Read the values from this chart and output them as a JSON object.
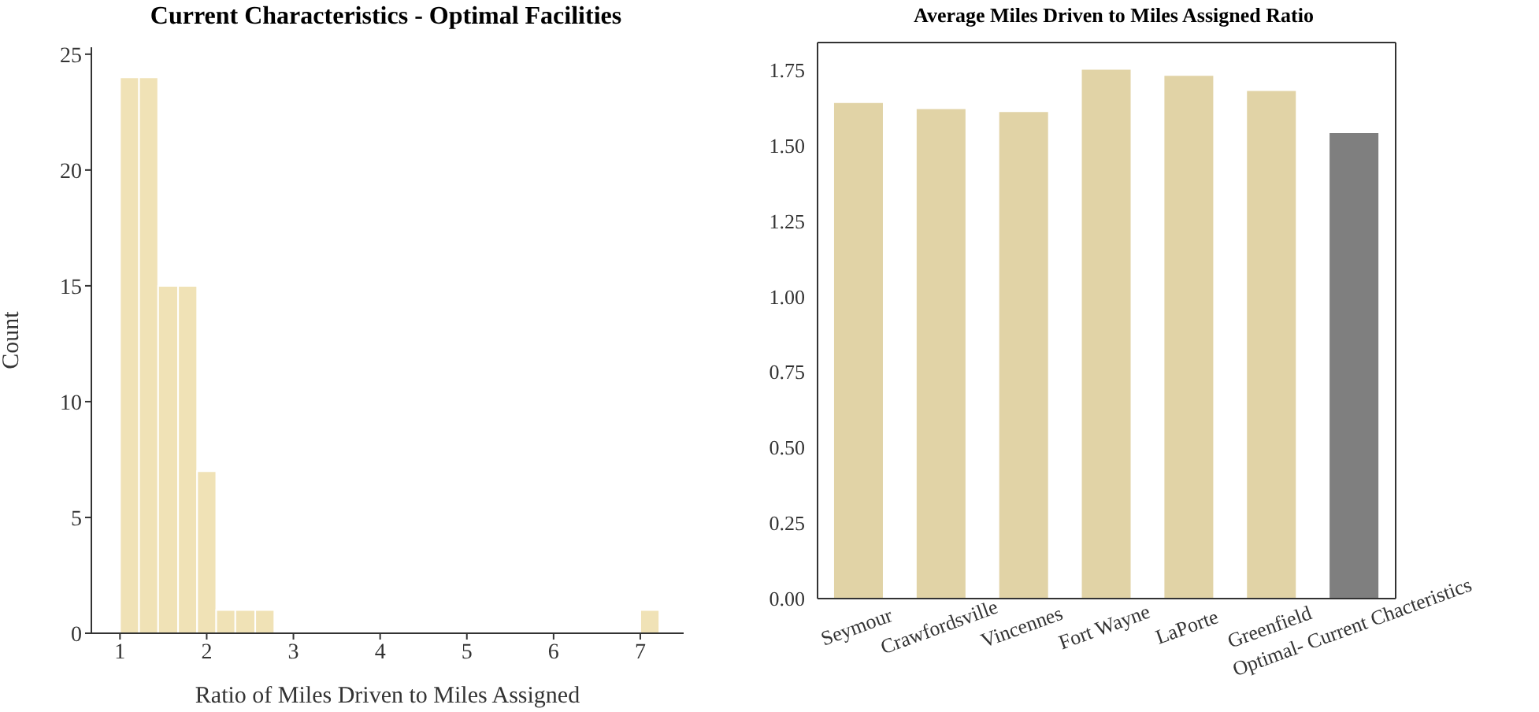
{
  "chart_data": [
    {
      "type": "histogram",
      "title": "Current Characteristics - Optimal Facilities",
      "xlabel": "Ratio of Miles Driven to Miles Assigned",
      "ylabel": "Count",
      "color": "#f0e2b6",
      "bins": [
        1,
        1.22,
        1.44,
        1.67,
        1.89,
        2.11,
        2.33,
        2.56,
        2.78,
        7,
        7.22
      ],
      "values": [
        24,
        24,
        15,
        15,
        7,
        1,
        1,
        1,
        0,
        1
      ],
      "xlim": [
        0.67,
        7.5
      ],
      "ylim": [
        0,
        25.3
      ],
      "xticks": [
        1,
        2,
        3,
        4,
        5,
        6,
        7
      ],
      "yticks": [
        0,
        5,
        10,
        15,
        20,
        25
      ]
    },
    {
      "type": "bar",
      "title": "Average Miles Driven to Miles Assigned Ratio",
      "categories": [
        "Seymour",
        "Crawfordsville",
        "Vincennes",
        "Fort Wayne",
        "LaPorte",
        "Greenfield",
        "Optimal- Current Chacteristics"
      ],
      "values": [
        1.64,
        1.62,
        1.61,
        1.75,
        1.73,
        1.68,
        1.54
      ],
      "colors": [
        "#e1d3a6",
        "#e1d3a6",
        "#e1d3a6",
        "#e1d3a6",
        "#e1d3a6",
        "#e1d3a6",
        "#7f7f7f"
      ],
      "ylim": [
        0,
        1.84
      ],
      "yticks": [
        {
          "value": 0,
          "label": "0.00"
        },
        {
          "value": 0.25,
          "label": "0.25"
        },
        {
          "value": 0.5,
          "label": "0.50"
        },
        {
          "value": 0.75,
          "label": "0.75"
        },
        {
          "value": 1,
          "label": "1.00"
        },
        {
          "value": 1.25,
          "label": "1.25"
        },
        {
          "value": 1.5,
          "label": "1.50"
        },
        {
          "value": 1.75,
          "label": "1.75"
        }
      ]
    }
  ]
}
